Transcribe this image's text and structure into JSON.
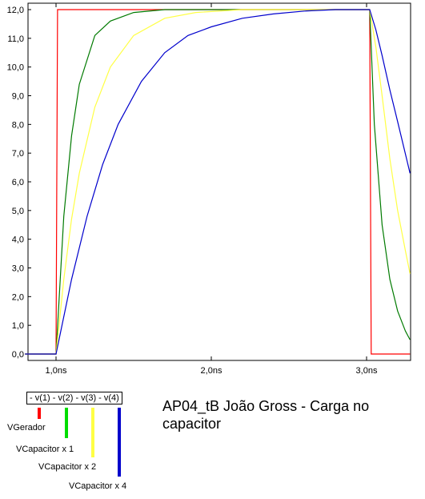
{
  "chart_data": {
    "type": "line",
    "title": "AP04_tB João Gross - Carga no capacitor",
    "xlim": [
      0.8,
      3.28
    ],
    "ylim": [
      0,
      12.5
    ],
    "grid": false,
    "x_ticks": [
      {
        "value": 1.0,
        "label": "1,0ns"
      },
      {
        "value": 2.0,
        "label": "2,0ns"
      },
      {
        "value": 3.0,
        "label": "3,0ns"
      }
    ],
    "y_ticks": [
      {
        "value": 0,
        "label": "0,0"
      },
      {
        "value": 1,
        "label": "1,0"
      },
      {
        "value": 2,
        "label": "2,0"
      },
      {
        "value": 3,
        "label": "3,0"
      },
      {
        "value": 4,
        "label": "4,0"
      },
      {
        "value": 5,
        "label": "5,0"
      },
      {
        "value": 6,
        "label": "6,0"
      },
      {
        "value": 7,
        "label": "7,0"
      },
      {
        "value": 8,
        "label": "8,0"
      },
      {
        "value": 9,
        "label": "9,0"
      },
      {
        "value": 10,
        "label": "10,0"
      },
      {
        "value": 11,
        "label": "11,0"
      },
      {
        "value": 12,
        "label": "12,0"
      }
    ],
    "series": [
      {
        "key": "red",
        "name": "v(1)",
        "color": "#ff0000",
        "x": [
          0.8,
          1.0,
          1.01,
          3.02,
          3.03,
          3.28
        ],
        "y": [
          0,
          0,
          12,
          12,
          0,
          0
        ]
      },
      {
        "key": "green",
        "name": "v(2)",
        "color": "#007a00",
        "x": [
          0.8,
          1.0,
          1.05,
          1.1,
          1.15,
          1.25,
          1.35,
          1.5,
          1.7,
          2.0,
          2.5,
          3.0,
          3.02,
          3.05,
          3.1,
          3.15,
          3.2,
          3.25,
          3.28
        ],
        "y": [
          0,
          0,
          4.8,
          7.6,
          9.4,
          11.1,
          11.6,
          11.9,
          12.0,
          12.0,
          12.0,
          12.0,
          12.0,
          8.0,
          4.5,
          2.6,
          1.5,
          0.8,
          0.5
        ]
      },
      {
        "key": "yellow",
        "name": "v(3)",
        "color": "#ffff44",
        "x": [
          0.8,
          1.0,
          1.05,
          1.1,
          1.15,
          1.25,
          1.35,
          1.5,
          1.7,
          1.9,
          2.2,
          2.6,
          3.0,
          3.02,
          3.06,
          3.1,
          3.15,
          3.2,
          3.25,
          3.28
        ],
        "y": [
          0,
          0,
          2.6,
          4.7,
          6.3,
          8.6,
          10.0,
          11.1,
          11.7,
          11.9,
          12.0,
          12.0,
          12.0,
          12.0,
          10.7,
          9.0,
          6.8,
          5.0,
          3.6,
          2.8
        ]
      },
      {
        "key": "blue",
        "name": "v(4)",
        "color": "#0000cc",
        "x": [
          0.8,
          1.0,
          1.05,
          1.1,
          1.2,
          1.3,
          1.4,
          1.55,
          1.7,
          1.85,
          2.0,
          2.2,
          2.4,
          2.6,
          2.8,
          3.0,
          3.02,
          3.06,
          3.1,
          3.15,
          3.2,
          3.28
        ],
        "y": [
          0,
          0,
          1.3,
          2.6,
          4.8,
          6.6,
          8.0,
          9.5,
          10.5,
          11.1,
          11.4,
          11.7,
          11.85,
          11.95,
          12.0,
          12.0,
          12.0,
          11.3,
          10.4,
          9.2,
          8.1,
          6.3
        ]
      }
    ],
    "legend_title": "- v(1) - v(2) - v(3) - v(4)",
    "legend_labels": [
      {
        "key": "red",
        "text": "VGerador",
        "color": "#ff0000"
      },
      {
        "key": "green",
        "text": "VCapacitor x 1",
        "color": "#00dd00"
      },
      {
        "key": "yellow",
        "text": "VCapacitor x 2",
        "color": "#ffff44"
      },
      {
        "key": "blue",
        "text": "VCapacitor x 4",
        "color": "#0000cc"
      }
    ]
  }
}
